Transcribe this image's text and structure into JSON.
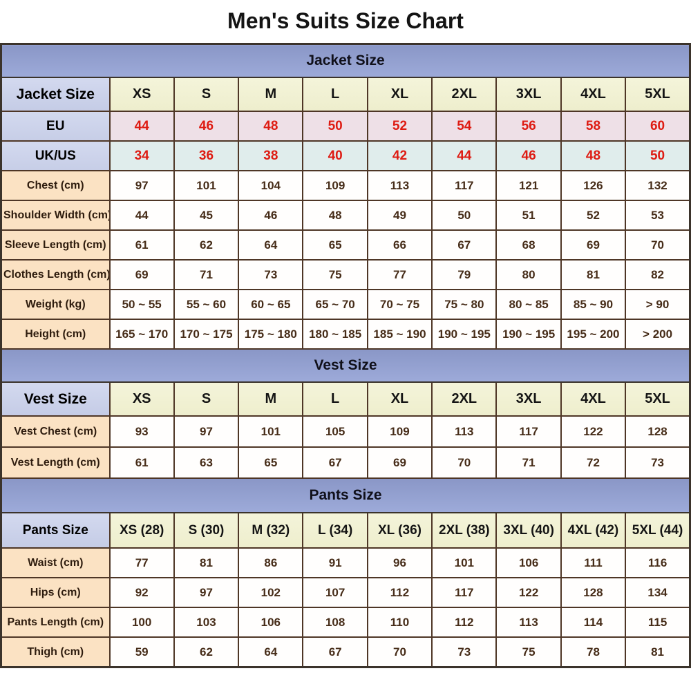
{
  "title": "Men's Suits Size Chart",
  "colors": {
    "band_blue": "#93a1d0",
    "corner_lavender": "#ccd3ea",
    "size_header_cream": "#f1f1d3",
    "label_peach": "#fbe2c3",
    "eu_row_pink": "#eee0e7",
    "ukus_row_cyan": "#e0edec",
    "accent_red": "#de1b12",
    "grid_brown": "#4e3626",
    "body_text_brown": "#462c18"
  },
  "chart_data": [
    {
      "type": "table",
      "title": "Jacket Size",
      "columns": [
        "Jacket Size",
        "XS",
        "S",
        "M",
        "L",
        "XL",
        "2XL",
        "3XL",
        "4XL",
        "5XL"
      ],
      "rows": [
        {
          "label": "EU",
          "kind": "eu",
          "values": [
            "44",
            "46",
            "48",
            "50",
            "52",
            "54",
            "56",
            "58",
            "60"
          ]
        },
        {
          "label": "UK/US",
          "kind": "ukus",
          "values": [
            "34",
            "36",
            "38",
            "40",
            "42",
            "44",
            "46",
            "48",
            "50"
          ]
        },
        {
          "label": "Chest (cm)",
          "kind": "",
          "values": [
            "97",
            "101",
            "104",
            "109",
            "113",
            "117",
            "121",
            "126",
            "132"
          ]
        },
        {
          "label": "Shoulder Width (cm)",
          "kind": "",
          "values": [
            "44",
            "45",
            "46",
            "48",
            "49",
            "50",
            "51",
            "52",
            "53"
          ]
        },
        {
          "label": "Sleeve Length (cm)",
          "kind": "",
          "values": [
            "61",
            "62",
            "64",
            "65",
            "66",
            "67",
            "68",
            "69",
            "70"
          ]
        },
        {
          "label": "Clothes Length (cm)",
          "kind": "",
          "values": [
            "69",
            "71",
            "73",
            "75",
            "77",
            "79",
            "80",
            "81",
            "82"
          ]
        },
        {
          "label": "Weight (kg)",
          "kind": "",
          "values": [
            "50 ~ 55",
            "55 ~ 60",
            "60 ~ 65",
            "65 ~ 70",
            "70 ~ 75",
            "75 ~ 80",
            "80 ~ 85",
            "85 ~ 90",
            "> 90"
          ]
        },
        {
          "label": "Height (cm)",
          "kind": "",
          "values": [
            "165 ~ 170",
            "170 ~ 175",
            "175 ~ 180",
            "180 ~ 185",
            "185 ~ 190",
            "190 ~ 195",
            "190 ~ 195",
            "195 ~ 200",
            "> 200"
          ]
        }
      ]
    },
    {
      "type": "table",
      "title": "Vest Size",
      "columns": [
        "Vest Size",
        "XS",
        "S",
        "M",
        "L",
        "XL",
        "2XL",
        "3XL",
        "4XL",
        "5XL"
      ],
      "rows": [
        {
          "label": "Vest Chest (cm)",
          "kind": "",
          "values": [
            "93",
            "97",
            "101",
            "105",
            "109",
            "113",
            "117",
            "122",
            "128"
          ]
        },
        {
          "label": "Vest Length (cm)",
          "kind": "",
          "values": [
            "61",
            "63",
            "65",
            "67",
            "69",
            "70",
            "71",
            "72",
            "73"
          ]
        }
      ]
    },
    {
      "type": "table",
      "title": "Pants Size",
      "columns": [
        "Pants Size",
        "XS (28)",
        "S (30)",
        "M (32)",
        "L (34)",
        "XL (36)",
        "2XL (38)",
        "3XL (40)",
        "4XL (42)",
        "5XL (44)"
      ],
      "rows": [
        {
          "label": "Waist (cm)",
          "kind": "",
          "values": [
            "77",
            "81",
            "86",
            "91",
            "96",
            "101",
            "106",
            "111",
            "116"
          ]
        },
        {
          "label": "Hips (cm)",
          "kind": "",
          "values": [
            "92",
            "97",
            "102",
            "107",
            "112",
            "117",
            "122",
            "128",
            "134"
          ]
        },
        {
          "label": "Pants Length (cm)",
          "kind": "",
          "values": [
            "100",
            "103",
            "106",
            "108",
            "110",
            "112",
            "113",
            "114",
            "115"
          ]
        },
        {
          "label": "Thigh (cm)",
          "kind": "",
          "values": [
            "59",
            "62",
            "64",
            "67",
            "70",
            "73",
            "75",
            "78",
            "81"
          ]
        }
      ]
    }
  ]
}
